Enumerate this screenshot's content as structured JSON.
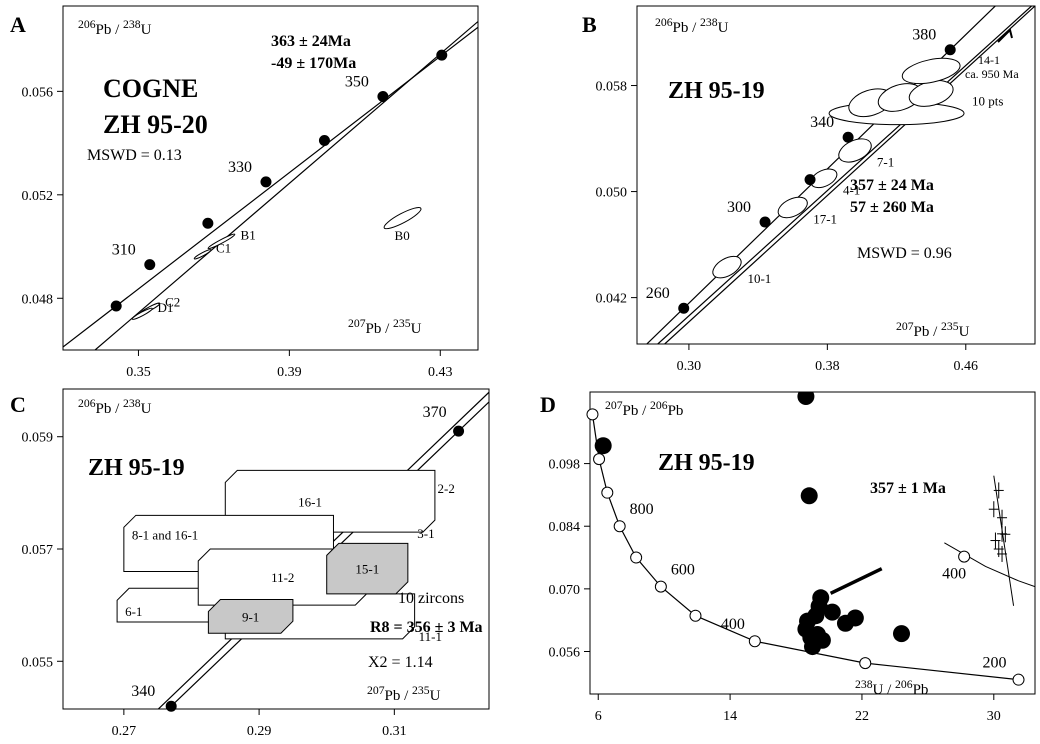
{
  "chart_data": [
    {
      "panel": "A",
      "type": "scatter",
      "title_lines": [
        "COGNE",
        "ZH 95-20"
      ],
      "ylabel": {
        "num": "206",
        "numSym": "Pb",
        "den": "238",
        "denSym": "U"
      },
      "xlabel": {
        "num": "207",
        "numSym": "Pb",
        "den": "235",
        "denSym": "U"
      },
      "xlim": [
        0.33,
        0.44
      ],
      "ylim": [
        0.046,
        0.0593
      ],
      "xticks": [
        {
          "v": 0.35,
          "t": "0.35"
        },
        {
          "v": 0.39,
          "t": "0.39"
        },
        {
          "v": 0.43,
          "t": "0.43"
        }
      ],
      "yticks": [
        {
          "v": 0.048,
          "t": "0.048"
        },
        {
          "v": 0.052,
          "t": "0.052"
        },
        {
          "v": 0.056,
          "t": "0.056"
        }
      ],
      "concordia": [
        {
          "x": 0.3441,
          "y": 0.0477,
          "t": ""
        },
        {
          "x": 0.353,
          "y": 0.0493,
          "t": "310"
        },
        {
          "x": 0.3684,
          "y": 0.0509,
          "t": ""
        },
        {
          "x": 0.3838,
          "y": 0.0525,
          "t": "330"
        },
        {
          "x": 0.3993,
          "y": 0.0541,
          "t": ""
        },
        {
          "x": 0.4148,
          "y": 0.0558,
          "t": "350"
        },
        {
          "x": 0.4304,
          "y": 0.0574,
          "t": ""
        }
      ],
      "discordia": [
        [
          0.3385,
          0.046
        ],
        [
          0.44,
          0.0587
        ]
      ],
      "ellipses": [
        {
          "x": 0.372,
          "y": 0.0502,
          "rx": 0.004,
          "ry": 7e-05,
          "t": "B1"
        },
        {
          "x": 0.367,
          "y": 0.0497,
          "rx": 0.0025,
          "ry": 6e-05,
          "t": "C1"
        },
        {
          "x": 0.353,
          "y": 0.0476,
          "rx": 0.003,
          "ry": 7e-05,
          "t": "C2"
        },
        {
          "x": 0.351,
          "y": 0.0474,
          "rx": 0.003,
          "ry": 7e-05,
          "t": "D1"
        },
        {
          "x": 0.42,
          "y": 0.0511,
          "rx": 0.0055,
          "ry": 0.00018,
          "t": "B0"
        }
      ],
      "ages": [
        "363 ± 24Ma",
        "-49 ± 170Ma"
      ],
      "mswd": "MSWD = 0.13"
    },
    {
      "panel": "B",
      "type": "scatter",
      "title_lines": [
        "ZH 95-19"
      ],
      "ylabel": {
        "num": "206",
        "numSym": "Pb",
        "den": "238",
        "denSym": "U"
      },
      "xlabel": {
        "num": "207",
        "numSym": "Pb",
        "den": "235",
        "denSym": "U"
      },
      "xlim": [
        0.27,
        0.5
      ],
      "ylim": [
        0.0385,
        0.064
      ],
      "xticks": [
        {
          "v": 0.3,
          "t": "0.30"
        },
        {
          "v": 0.38,
          "t": "0.38"
        },
        {
          "v": 0.46,
          "t": "0.46"
        }
      ],
      "yticks": [
        {
          "v": 0.042,
          "t": "0.042"
        },
        {
          "v": 0.05,
          "t": "0.050"
        },
        {
          "v": 0.058,
          "t": "0.058"
        }
      ],
      "concordia": [
        {
          "x": 0.297,
          "y": 0.0412,
          "t": "260"
        },
        {
          "x": 0.344,
          "y": 0.0477,
          "t": "300"
        },
        {
          "x": 0.37,
          "y": 0.0509,
          "t": ""
        },
        {
          "x": 0.392,
          "y": 0.0541,
          "t": "340"
        },
        {
          "x": 0.451,
          "y": 0.0607,
          "t": "380"
        }
      ],
      "discordia_lines": [
        [
          [
            0.282,
            0.0385
          ],
          [
            0.498,
            0.064
          ]
        ],
        [
          [
            0.286,
            0.0385
          ],
          [
            0.5,
            0.064
          ]
        ]
      ],
      "ellipses": [
        {
          "x": 0.322,
          "y": 0.0443,
          "rx": 0.009,
          "ry": 0.00065,
          "rot": -30,
          "t": "10-1"
        },
        {
          "x": 0.36,
          "y": 0.0488,
          "rx": 0.009,
          "ry": 0.00065,
          "rot": -25,
          "t": "17-1"
        },
        {
          "x": 0.378,
          "y": 0.051,
          "rx": 0.008,
          "ry": 0.0006,
          "rot": -25,
          "t": "4-1"
        },
        {
          "x": 0.396,
          "y": 0.0531,
          "rx": 0.01,
          "ry": 0.00075,
          "rot": -25,
          "t": "7-1"
        },
        {
          "x": 0.42,
          "y": 0.0559,
          "rx": 0.039,
          "ry": 0.00085,
          "rot": 0,
          "t": "10 pts"
        },
        {
          "x": 0.405,
          "y": 0.0567,
          "rx": 0.013,
          "ry": 0.00095,
          "rot": -18,
          "t": ""
        },
        {
          "x": 0.422,
          "y": 0.0571,
          "rx": 0.013,
          "ry": 0.00095,
          "rot": -18,
          "t": ""
        },
        {
          "x": 0.44,
          "y": 0.0574,
          "rx": 0.013,
          "ry": 0.0009,
          "rot": -15,
          "t": ""
        },
        {
          "x": 0.44,
          "y": 0.0591,
          "rx": 0.017,
          "ry": 0.00085,
          "rot": -12,
          "t": ""
        }
      ],
      "arrow_label": [
        "14-1",
        "ca. 950 Ma"
      ],
      "ages": [
        "357 ± 24 Ma",
        "57 ± 260 Ma"
      ],
      "mswd": "MSWD = 0.96"
    },
    {
      "panel": "C",
      "type": "scatter",
      "title_lines": [
        "ZH 95-19"
      ],
      "ylabel": {
        "num": "206",
        "numSym": "Pb",
        "den": "238",
        "denSym": "U"
      },
      "xlabel": {
        "num": "207",
        "numSym": "Pb",
        "den": "235",
        "denSym": "U"
      },
      "xlim": [
        0.261,
        0.324
      ],
      "ylim": [
        0.05415,
        0.05985
      ],
      "xticks": [
        {
          "v": 0.27,
          "t": "0.27"
        },
        {
          "v": 0.29,
          "t": "0.29"
        },
        {
          "v": 0.31,
          "t": "0.31"
        }
      ],
      "yticks": [
        {
          "v": 0.055,
          "t": "0.055"
        },
        {
          "v": 0.057,
          "t": "0.057"
        },
        {
          "v": 0.059,
          "t": "0.059"
        }
      ],
      "concordia": [
        {
          "x": 0.277,
          "y": 0.0542,
          "t": "340"
        },
        {
          "x": 0.3195,
          "y": 0.0591,
          "t": "370"
        }
      ],
      "discordia": [
        [
          0.2725,
          0.05385
        ],
        [
          0.3245,
          0.05985
        ]
      ],
      "boxes": [
        {
          "x0": 0.285,
          "x1": 0.316,
          "y0": 0.0573,
          "y1": 0.0584,
          "t": "16-1",
          "fill": "#ffffff"
        },
        {
          "x0": 0.27,
          "x1": 0.301,
          "y0": 0.0566,
          "y1": 0.0576,
          "t": "8-1 and 16-1",
          "fill": "#ffffff"
        },
        {
          "x0": 0.269,
          "x1": 0.29,
          "y0": 0.0557,
          "y1": 0.0563,
          "t": "6-1",
          "fill": "#ffffff"
        },
        {
          "x0": 0.285,
          "x1": 0.313,
          "y0": 0.0554,
          "y1": 0.0562,
          "t": "11-1",
          "fill": "#ffffff"
        },
        {
          "x0": 0.281,
          "x1": 0.306,
          "y0": 0.056,
          "y1": 0.057,
          "t": "11-2",
          "fill": "#ffffff"
        },
        {
          "x0": 0.3,
          "x1": 0.312,
          "y0": 0.0562,
          "y1": 0.0571,
          "t": "15-1",
          "fill": "#c8c8c8"
        },
        {
          "x0": 0.2825,
          "x1": 0.295,
          "y0": 0.0555,
          "y1": 0.0561,
          "t": "9-1",
          "fill": "#c8c8c8"
        }
      ],
      "side_labels": [
        {
          "x": 0.3155,
          "y": 0.058,
          "t": "2-2"
        },
        {
          "x": 0.3125,
          "y": 0.0572,
          "t": "3-1"
        }
      ],
      "note": "10 zircons",
      "ages": [
        "R8 =  356 ± 3 Ma"
      ],
      "chi": "X2 = 1.14"
    },
    {
      "panel": "D",
      "type": "scatter",
      "title_lines": [
        "ZH 95-19"
      ],
      "ylabel": {
        "num": "207",
        "numSym": "Pb",
        "den": "206",
        "denSym": "Pb"
      },
      "xlabel": {
        "num": "238",
        "numSym": "U",
        "den": "206",
        "denSym": "Pb"
      },
      "xlim": [
        5.5,
        32.5
      ],
      "ylim": [
        0.0465,
        0.114
      ],
      "xticks": [
        {
          "v": 6,
          "t": "6"
        },
        {
          "v": 14,
          "t": "14"
        },
        {
          "v": 22,
          "t": "22"
        },
        {
          "v": 30,
          "t": "30"
        }
      ],
      "yticks": [
        {
          "v": 0.056,
          "t": "0.056"
        },
        {
          "v": 0.07,
          "t": "0.070"
        },
        {
          "v": 0.084,
          "t": "0.084"
        },
        {
          "v": 0.098,
          "t": "0.098"
        }
      ],
      "concordia": [
        {
          "x": 5.65,
          "y": 0.109,
          "t": ""
        },
        {
          "x": 6.05,
          "y": 0.099,
          "t": ""
        },
        {
          "x": 6.55,
          "y": 0.0915,
          "t": ""
        },
        {
          "x": 7.3,
          "y": 0.084,
          "t": "800"
        },
        {
          "x": 8.3,
          "y": 0.077,
          "t": ""
        },
        {
          "x": 9.8,
          "y": 0.0705,
          "t": "600"
        },
        {
          "x": 11.9,
          "y": 0.064,
          "t": ""
        },
        {
          "x": 15.5,
          "y": 0.0583,
          "t": "400"
        },
        {
          "x": 22.2,
          "y": 0.0534,
          "t": ""
        },
        {
          "x": 31.5,
          "y": 0.0497,
          "t": "200"
        }
      ],
      "inset_concordia": [
        [
          27.0,
          0.0803
        ],
        [
          29.5,
          0.075
        ],
        [
          31.5,
          0.0718
        ],
        [
          32.5,
          0.0705
        ]
      ],
      "inset_point": {
        "x": 28.2,
        "y": 0.0772,
        "t": "400"
      },
      "tera_line": [
        [
          30.0,
          0.0953
        ],
        [
          31.2,
          0.0662
        ]
      ],
      "crosses": [
        [
          30.0,
          0.0878
        ],
        [
          30.3,
          0.092
        ],
        [
          30.5,
          0.0859
        ],
        [
          30.1,
          0.0808
        ],
        [
          30.5,
          0.0823
        ],
        [
          30.3,
          0.0789
        ],
        [
          30.5,
          0.0778
        ],
        [
          30.7,
          0.0822
        ]
      ],
      "dash": [
        [
          20.1,
          0.069
        ],
        [
          23.2,
          0.0745
        ]
      ],
      "solid_points": [
        [
          18.6,
          0.113
        ],
        [
          6.3,
          0.102
        ],
        [
          18.8,
          0.0908
        ],
        [
          18.6,
          0.061
        ],
        [
          18.7,
          0.0628
        ],
        [
          19.2,
          0.064
        ],
        [
          19.4,
          0.0661
        ],
        [
          19.5,
          0.068
        ],
        [
          20.2,
          0.0648
        ],
        [
          21.0,
          0.0623
        ],
        [
          21.6,
          0.0635
        ],
        [
          18.9,
          0.0591
        ],
        [
          19.3,
          0.0598
        ],
        [
          24.4,
          0.06
        ],
        [
          19.0,
          0.0571
        ],
        [
          19.6,
          0.0585
        ]
      ],
      "ages": [
        "357 ± 1 Ma"
      ]
    }
  ]
}
